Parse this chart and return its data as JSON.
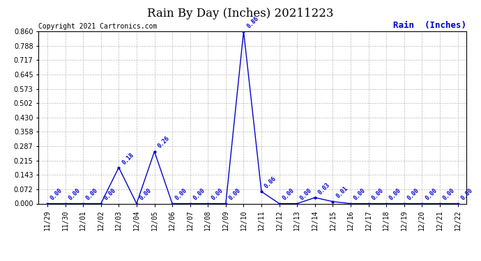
{
  "title": "Rain By Day (Inches) 20211223",
  "copyright_text": "Copyright 2021 Cartronics.com",
  "legend_text": "Rain  (Inches)",
  "line_color": "#0000cc",
  "background_color": "#ffffff",
  "grid_color": "#bbbbbb",
  "dates": [
    "11/29",
    "11/30",
    "12/01",
    "12/02",
    "12/03",
    "12/04",
    "12/05",
    "12/06",
    "12/07",
    "12/08",
    "12/09",
    "12/10",
    "12/11",
    "12/12",
    "12/13",
    "12/14",
    "12/15",
    "12/16",
    "12/17",
    "12/18",
    "12/19",
    "12/20",
    "12/21",
    "12/22"
  ],
  "values": [
    0.0,
    0.0,
    0.0,
    0.0,
    0.18,
    0.0,
    0.26,
    0.0,
    0.0,
    0.0,
    0.0,
    0.86,
    0.06,
    0.0,
    0.0,
    0.03,
    0.01,
    0.0,
    0.0,
    0.0,
    0.0,
    0.0,
    0.0,
    0.0
  ],
  "yticks": [
    0.0,
    0.072,
    0.143,
    0.215,
    0.287,
    0.358,
    0.43,
    0.502,
    0.573,
    0.645,
    0.717,
    0.788,
    0.86
  ],
  "ylim": [
    0.0,
    0.86
  ],
  "title_fontsize": 12,
  "copyright_fontsize": 7,
  "legend_fontsize": 9,
  "annotation_fontsize": 6,
  "xtick_fontsize": 7,
  "ytick_fontsize": 7
}
